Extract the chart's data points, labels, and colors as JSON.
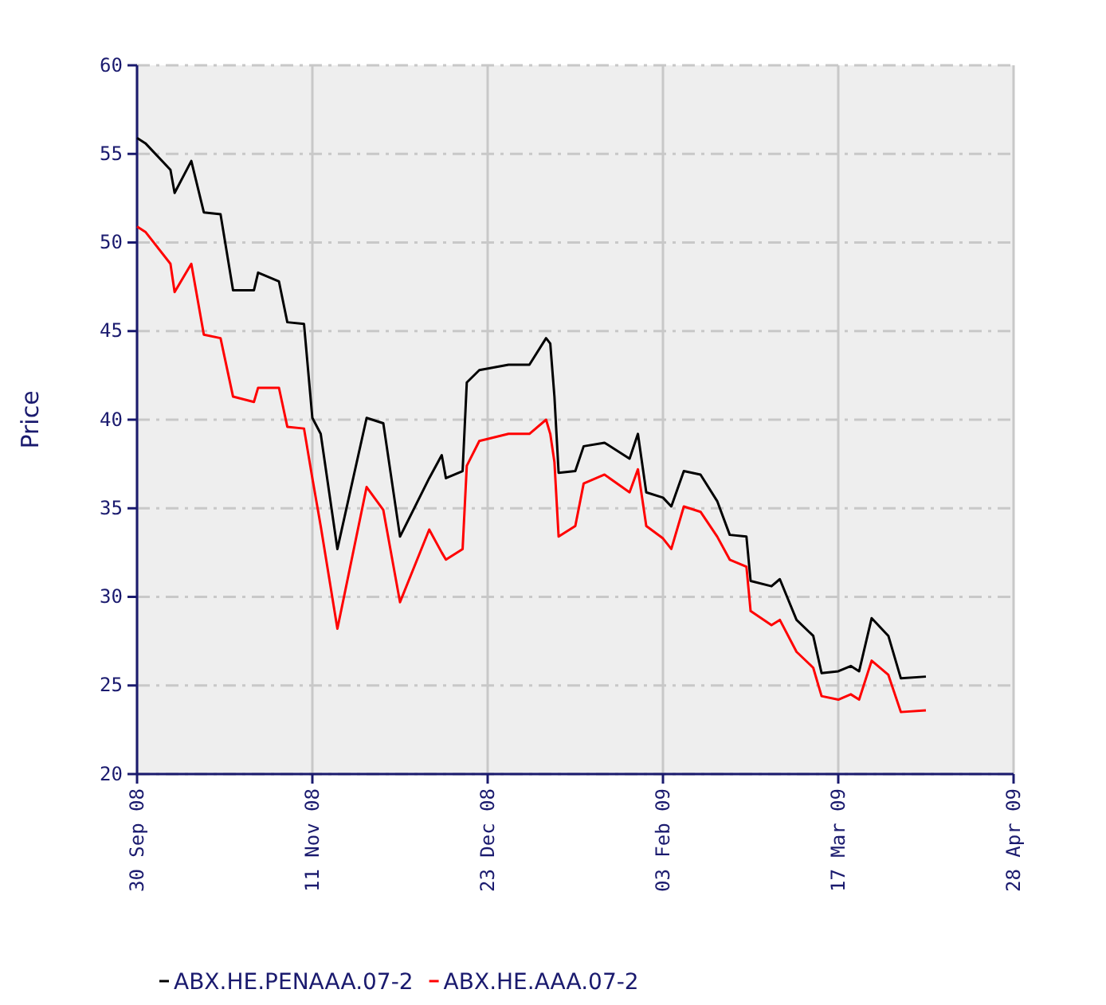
{
  "chart_data": {
    "type": "line",
    "ylabel": "Price",
    "x": [
      "2008-09-30",
      "2008-10-02",
      "2008-10-08",
      "2008-10-09",
      "2008-10-13",
      "2008-10-16",
      "2008-10-20",
      "2008-10-23",
      "2008-10-28",
      "2008-10-29",
      "2008-11-03",
      "2008-11-05",
      "2008-11-09",
      "2008-11-11",
      "2008-11-13",
      "2008-11-17",
      "2008-11-24",
      "2008-11-28",
      "2008-12-02",
      "2008-12-09",
      "2008-12-12",
      "2008-12-13",
      "2008-12-17",
      "2008-12-18",
      "2008-12-21",
      "2008-12-28",
      "2009-01-02",
      "2009-01-06",
      "2009-01-07",
      "2009-01-08",
      "2009-01-09",
      "2009-01-13",
      "2009-01-15",
      "2009-01-20",
      "2009-01-26",
      "2009-01-28",
      "2009-01-30",
      "2009-02-03",
      "2009-02-05",
      "2009-02-08",
      "2009-02-12",
      "2009-02-16",
      "2009-02-19",
      "2009-02-23",
      "2009-02-24",
      "2009-03-01",
      "2009-03-03",
      "2009-03-07",
      "2009-03-11",
      "2009-03-13",
      "2009-03-17",
      "2009-03-20",
      "2009-03-22",
      "2009-03-25",
      "2009-03-29",
      "2009-04-01",
      "2009-04-07"
    ],
    "series": [
      {
        "name": "ABX.HE.PENAAA.07-2",
        "color": "#000000",
        "values": [
          55.9,
          55.6,
          54.1,
          52.8,
          54.6,
          51.7,
          51.6,
          47.3,
          47.3,
          48.3,
          47.8,
          45.5,
          45.4,
          40.1,
          39.2,
          32.7,
          40.1,
          39.8,
          33.4,
          36.7,
          38.0,
          36.7,
          37.1,
          42.1,
          42.8,
          43.1,
          43.1,
          44.6,
          44.3,
          41.3,
          37.0,
          37.1,
          38.5,
          38.7,
          37.8,
          39.2,
          35.9,
          35.6,
          35.1,
          37.1,
          36.9,
          35.4,
          33.5,
          33.4,
          30.9,
          30.6,
          31.0,
          28.7,
          27.8,
          25.7,
          25.8,
          26.1,
          25.8,
          28.8,
          27.8,
          25.4,
          25.5
        ]
      },
      {
        "name": "ABX.HE.AAA.07-2",
        "color": "#ff0000",
        "values": [
          50.9,
          50.6,
          48.8,
          47.2,
          48.8,
          44.8,
          44.6,
          41.3,
          41.0,
          41.8,
          41.8,
          39.6,
          39.5,
          36.7,
          34.0,
          28.2,
          36.2,
          34.9,
          29.7,
          33.8,
          32.5,
          32.1,
          32.7,
          37.4,
          38.8,
          39.2,
          39.2,
          40.0,
          39.2,
          37.6,
          33.4,
          34.0,
          36.4,
          36.9,
          35.9,
          37.2,
          34.0,
          33.3,
          32.7,
          35.1,
          34.8,
          33.4,
          32.1,
          31.7,
          29.2,
          28.4,
          28.7,
          26.9,
          26.0,
          24.4,
          24.2,
          24.5,
          24.2,
          26.4,
          25.6,
          23.5,
          23.6
        ]
      }
    ],
    "xlim": [
      "2008-09-30",
      "2009-04-28"
    ],
    "xticks": [
      {
        "value": "2008-09-30",
        "label": "30 Sep 08"
      },
      {
        "value": "2008-11-11",
        "label": "11 Nov 08"
      },
      {
        "value": "2008-12-23",
        "label": "23 Dec 08"
      },
      {
        "value": "2009-02-03",
        "label": "03 Feb 09"
      },
      {
        "value": "2009-03-17",
        "label": "17 Mar 09"
      },
      {
        "value": "2009-04-28",
        "label": "28 Apr 09"
      }
    ],
    "ylim": [
      20,
      60
    ],
    "yticks": [
      20,
      25,
      30,
      35,
      40,
      45,
      50,
      55,
      60
    ],
    "grid": true,
    "legend": "bottom",
    "marker": "none",
    "line_style": "solid"
  }
}
